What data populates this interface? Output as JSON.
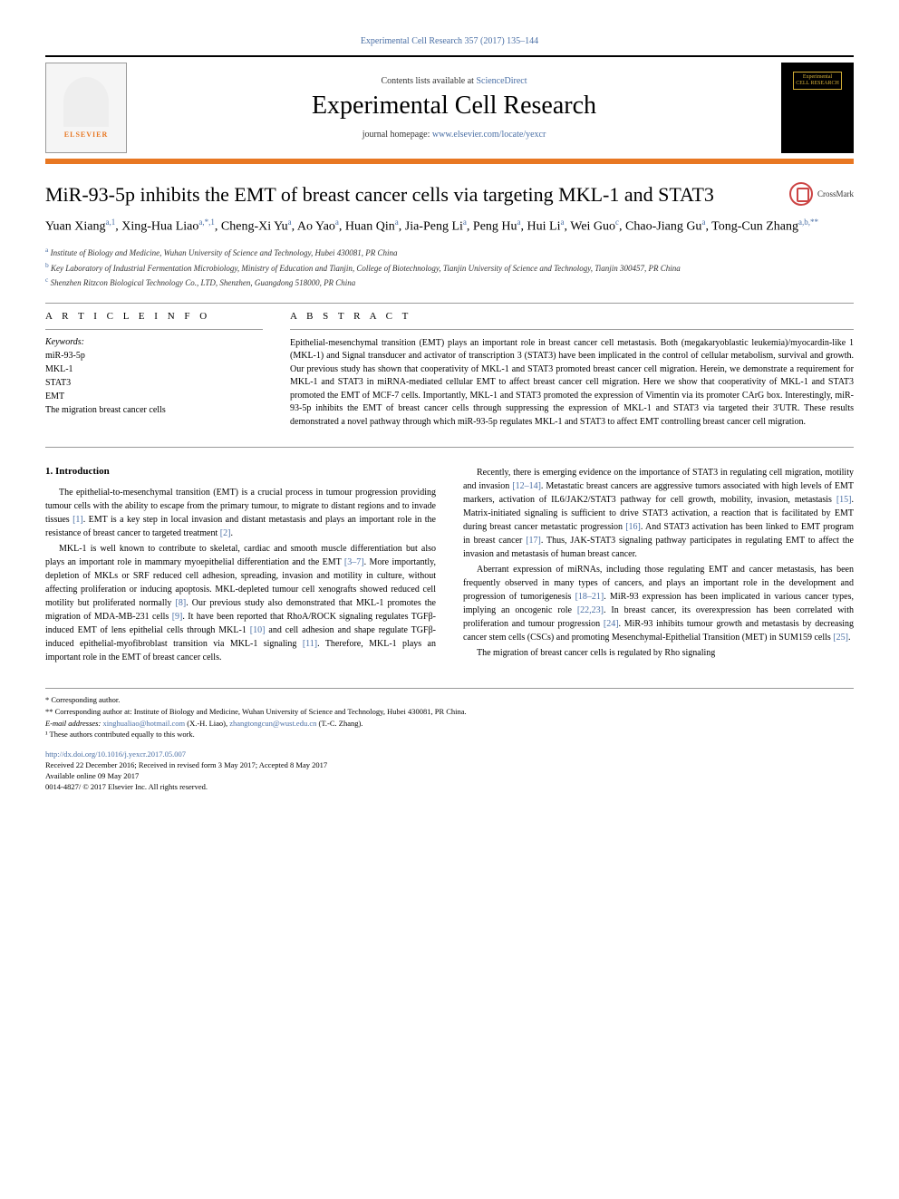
{
  "header": {
    "citation": "Experimental Cell Research 357 (2017) 135–144",
    "contents_prefix": "Contents lists available at ",
    "contents_link": "ScienceDirect",
    "journal_name": "Experimental Cell Research",
    "homepage_prefix": "journal homepage: ",
    "homepage_link": "www.elsevier.com/locate/yexcr",
    "elsevier": "ELSEVIER",
    "cover_line1": "Experimental",
    "cover_line2": "CELL RESEARCH"
  },
  "article": {
    "title": "MiR-93-5p inhibits the EMT of breast cancer cells via targeting MKL-1 and STAT3",
    "crossmark": "CrossMark",
    "authors_html": "Yuan Xiang<sup>a,1</sup>, Xing-Hua Liao<sup>a,*,1</sup>, Cheng-Xi Yu<sup>a</sup>, Ao Yao<sup>a</sup>, Huan Qin<sup>a</sup>, Jia-Peng Li<sup>a</sup>, Peng Hu<sup>a</sup>, Hui Li<sup>a</sup>, Wei Guo<sup>c</sup>, Chao-Jiang Gu<sup>a</sup>, Tong-Cun Zhang<sup>a,b,**</sup>",
    "affiliations": [
      {
        "sup": "a",
        "text": "Institute of Biology and Medicine, Wuhan University of Science and Technology, Hubei 430081, PR China"
      },
      {
        "sup": "b",
        "text": "Key Laboratory of Industrial Fermentation Microbiology, Ministry of Education and Tianjin, College of Biotechnology, Tianjin University of Science and Technology, Tianjin 300457, PR China"
      },
      {
        "sup": "c",
        "text": "Shenzhen Ritzcon Biological Technology Co., LTD, Shenzhen, Guangdong 518000, PR China"
      }
    ]
  },
  "info": {
    "heading": "A R T I C L E  I N F O",
    "keywords_label": "Keywords:",
    "keywords": [
      "miR-93-5p",
      "MKL-1",
      "STAT3",
      "EMT",
      "The migration breast cancer cells"
    ]
  },
  "abstract": {
    "heading": "A B S T R A C T",
    "text": "Epithelial-mesenchymal transition (EMT) plays an important role in breast cancer cell metastasis. Both (megakaryoblastic leukemia)/myocardin-like 1 (MKL-1) and Signal transducer and activator of transcription 3 (STAT3) have been implicated in the control of cellular metabolism, survival and growth. Our previous study has shown that cooperativity of MKL-1 and STAT3 promoted breast cancer cell migration. Herein, we demonstrate a requirement for MKL-1 and STAT3 in miRNA-mediated cellular EMT to affect breast cancer cell migration. Here we show that cooperativity of MKL-1 and STAT3 promoted the EMT of MCF-7 cells. Importantly, MKL-1 and STAT3 promoted the expression of Vimentin via its promoter CArG box. Interestingly, miR-93-5p inhibits the EMT of breast cancer cells through suppressing the expression of MKL-1 and STAT3 via targeted their 3'UTR. These results demonstrated a novel pathway through which miR-93-5p regulates MKL-1 and STAT3 to affect EMT controlling breast cancer cell migration."
  },
  "body": {
    "intro_heading": "1. Introduction",
    "col1_paras": [
      "The epithelial-to-mesenchymal transition (EMT) is a crucial process in tumour progression providing tumour cells with the ability to escape from the primary tumour, to migrate to distant regions and to invade tissues [1]. EMT is a key step in local invasion and distant metastasis and plays an important role in the resistance of breast cancer to targeted treatment [2].",
      "MKL-1 is well known to contribute to skeletal, cardiac and smooth muscle differentiation but also plays an important role in mammary myoepithelial differentiation and the EMT [3–7]. More importantly, depletion of MKLs or SRF reduced cell adhesion, spreading, invasion and motility in culture, without affecting proliferation or inducing apoptosis. MKL-depleted tumour cell xenografts showed reduced cell motility but proliferated normally [8]. Our previous study also demonstrated that MKL-1 promotes the migration of MDA-MB-231 cells [9]. It have been reported that RhoA/ROCK signaling regulates TGFβ-induced EMT of lens epithelial cells through MKL-1 [10] and cell adhesion and shape regulate TGFβ-induced epithelial-myofibroblast transition via MKL-1 signaling [11]. Therefore, MKL-1 plays an important role in the EMT of breast cancer cells."
    ],
    "col2_paras": [
      "Recently, there is emerging evidence on the importance of STAT3 in regulating cell migration, motility and invasion [12–14]. Metastatic breast cancers are aggressive tumors associated with high levels of EMT markers, activation of IL6/JAK2/STAT3 pathway for cell growth, mobility, invasion, metastasis [15]. Matrix-initiated signaling is sufficient to drive STAT3 activation, a reaction that is facilitated by EMT during breast cancer metastatic progression [16]. And STAT3 activation has been linked to EMT program in breast cancer [17]. Thus, JAK-STAT3 signaling pathway participates in regulating EMT to affect the invasion and metastasis of human breast cancer.",
      "Aberrant expression of miRNAs, including those regulating EMT and cancer metastasis, has been frequently observed in many types of cancers, and plays an important role in the development and progression of tumorigenesis [18–21]. MiR-93 expression has been implicated in various cancer types, implying an oncogenic role [22,23]. In breast cancer, its overexpression has been correlated with proliferation and tumour progression [24]. MiR-93 inhibits tumour growth and metastasis by decreasing cancer stem cells (CSCs) and promoting Mesenchymal-Epithelial Transition (MET) in SUM159 cells [25].",
      "The migration of breast cancer cells is regulated by Rho signaling"
    ]
  },
  "footnotes": {
    "corr1": "* Corresponding author.",
    "corr2": "** Corresponding author at: Institute of Biology and Medicine, Wuhan University of Science and Technology, Hubei 430081, PR China.",
    "emails_label": "E-mail addresses: ",
    "email1": "xinghualiao@hotmail.com",
    "email1_who": " (X.-H. Liao), ",
    "email2": "zhangtongcun@wust.edu.cn",
    "email2_who": " (T.-C. Zhang).",
    "contrib": "¹ These authors contributed equally to this work.",
    "doi": "http://dx.doi.org/10.1016/j.yexcr.2017.05.007",
    "received": "Received 22 December 2016; Received in revised form 3 May 2017; Accepted 8 May 2017",
    "online": "Available online 09 May 2017",
    "copyright": "0014-4827/ © 2017 Elsevier Inc. All rights reserved."
  },
  "colors": {
    "link": "#4a6fa5",
    "orange": "#e87722",
    "text": "#000000"
  }
}
